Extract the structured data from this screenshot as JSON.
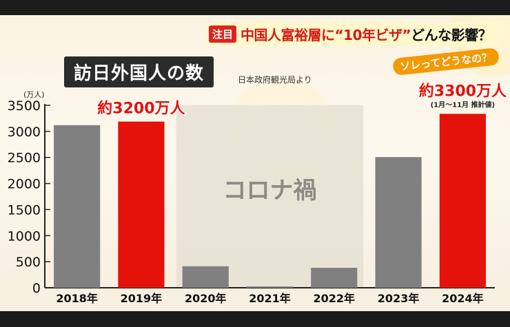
{
  "headline": {
    "badge": "注目",
    "text_red": "中国人富裕層に“10年ビザ”",
    "text_black": "どんな影響？"
  },
  "title": "訪日外国人の数",
  "source": "日本政府観光局より",
  "tag": "ソレってどうなの？",
  "chart_data": {
    "type": "bar",
    "unit_label": "(万人)",
    "categories": [
      "2018年",
      "2019年",
      "2020年",
      "2021年",
      "2022年",
      "2023年",
      "2024年"
    ],
    "values": [
      3119,
      3188,
      412,
      25,
      383,
      2507,
      3337
    ],
    "highlight_color": "#e4120a",
    "base_color": "#808080",
    "ylim": [
      0,
      3500
    ],
    "yticks": [
      0,
      500,
      1000,
      1500,
      2000,
      2500,
      3000,
      3500
    ],
    "grid": false,
    "annotations": [
      {
        "category": "2019年",
        "text": "約3200万人"
      },
      {
        "category": "2024年",
        "text": "約3300万人",
        "note": "(1月～11月 推計値)"
      }
    ],
    "shaded_region": {
      "from": "2020年",
      "to": "2022年",
      "label": "コロナ禍"
    },
    "highlighted": [
      "2019年",
      "2024年"
    ]
  }
}
